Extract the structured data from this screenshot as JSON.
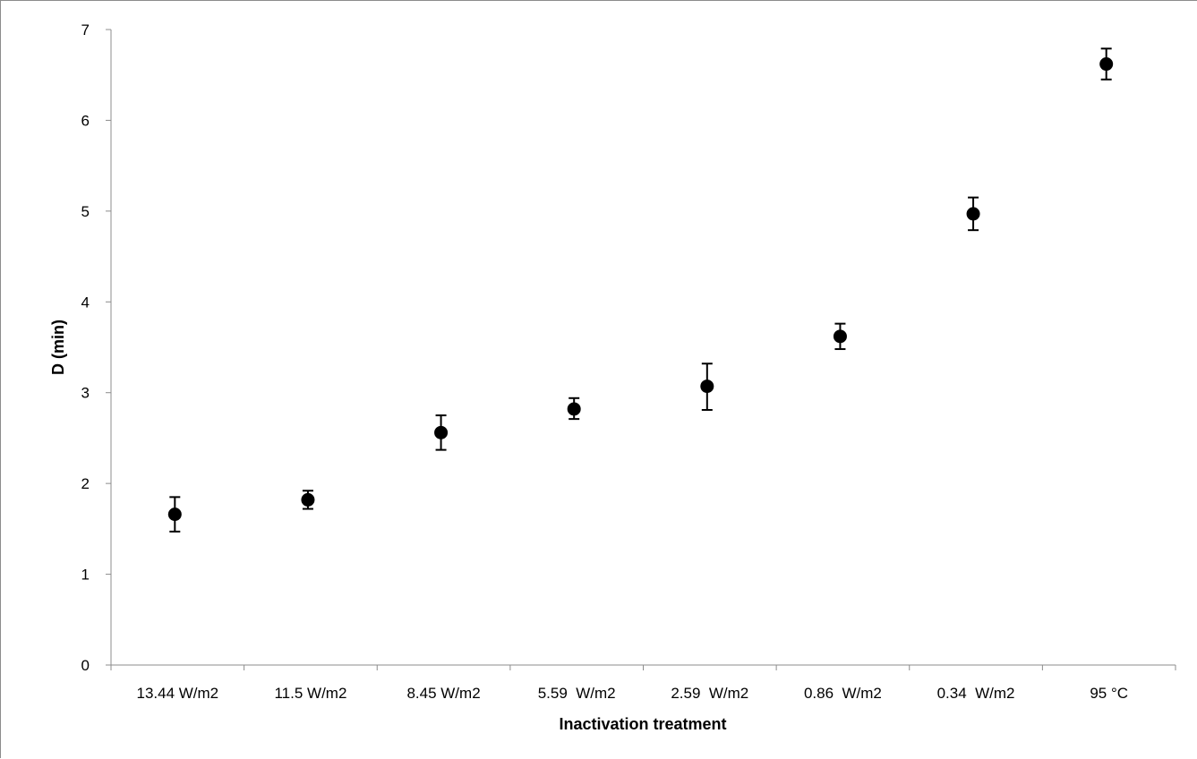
{
  "chart_data": {
    "type": "scatter",
    "title": "",
    "xlabel": "Inactivation treatment",
    "ylabel": "D (min)",
    "categories": [
      "13.44 W/m2",
      "11.5 W/m2",
      "8.45 W/m2",
      "5.59  W/m2",
      "2.59  W/m2",
      "0.86  W/m2",
      "0.34  W/m2",
      "95 °C"
    ],
    "values": [
      1.66,
      1.82,
      2.56,
      2.82,
      3.07,
      3.62,
      4.97,
      6.62
    ],
    "error_upper": [
      1.85,
      1.92,
      2.75,
      2.94,
      3.32,
      3.76,
      5.15,
      6.79
    ],
    "error_lower": [
      1.47,
      1.72,
      2.37,
      2.71,
      2.81,
      3.48,
      4.79,
      6.45
    ],
    "ylim": [
      0,
      7
    ],
    "yticks": [
      0,
      1,
      2,
      3,
      4,
      5,
      6,
      7
    ],
    "grid": false,
    "legend": "none",
    "marker_color": "#000000"
  }
}
